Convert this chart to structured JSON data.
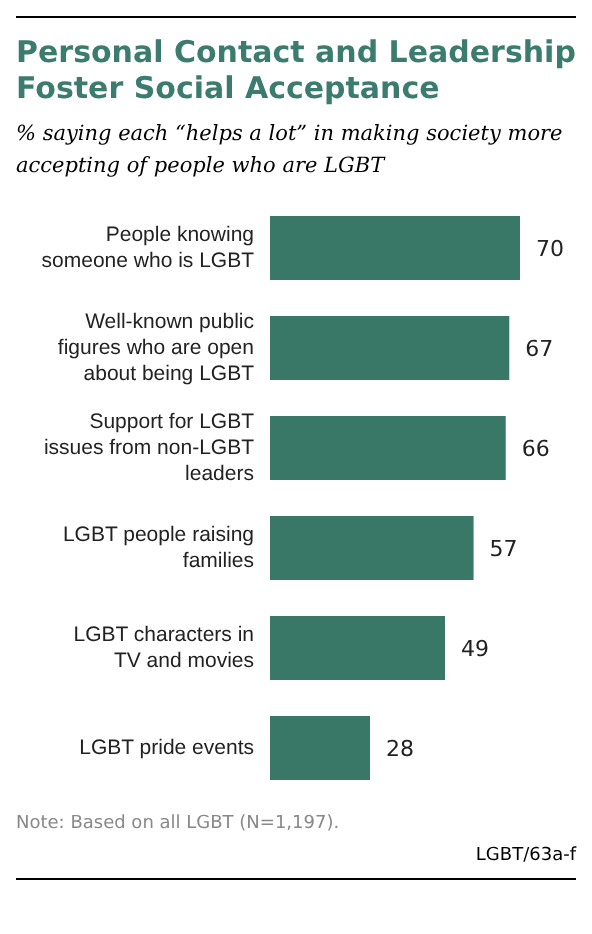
{
  "chart_data": {
    "type": "bar",
    "orientation": "horizontal",
    "title": "Personal Contact and Leadership Foster Social Acceptance",
    "subtitle": "% saying each “helps a lot” in making society more accepting of people who are LGBT",
    "categories": [
      "People knowing someone who is LGBT",
      "Well-known public figures who are open about being LGBT",
      "Support for LGBT issues from non-LGBT leaders",
      "LGBT people raising families",
      "LGBT characters in TV and movies",
      "LGBT pride events"
    ],
    "values": [
      70,
      67,
      66,
      57,
      49,
      28
    ],
    "color": "#397766",
    "data_labels": true,
    "annotations": [
      "Note: Based on all LGBT (N=1,197).",
      "LGBT/63a-f"
    ]
  }
}
